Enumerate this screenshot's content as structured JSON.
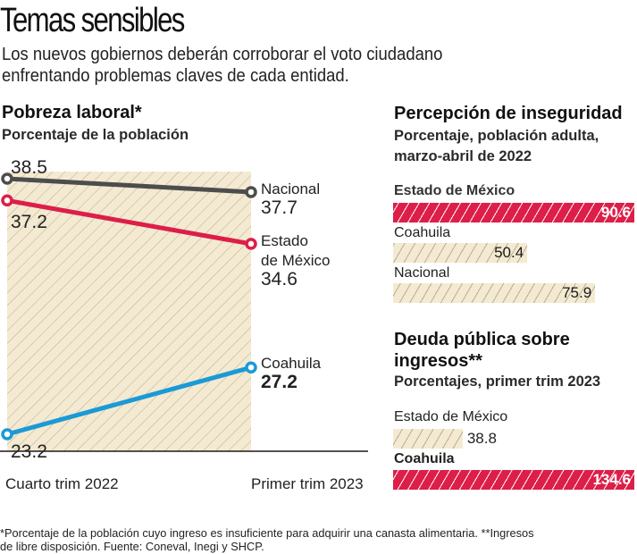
{
  "header": {
    "title": "Temas sensibles",
    "subtitle_line1": "Los nuevos gobiernos deberán corroborar el voto ciudadano",
    "subtitle_line2": "enfrentando problemas claves de cada entidad."
  },
  "colors": {
    "nacional": "#4d4d4d",
    "estado_de_mexico": "#dd1e48",
    "coahuila": "#1a9ad6",
    "hatch_bg": "#f3ead1",
    "hatch_line": "#b7ad93"
  },
  "chart_data": [
    {
      "type": "line",
      "title": "Pobreza laboral*",
      "subtitle": "Porcentaje de la población",
      "categories": [
        "Cuarto trim 2022",
        "Primer trim 2023"
      ],
      "series": [
        {
          "name": "Nacional",
          "values": [
            38.5,
            37.7
          ],
          "labels": [
            "38.5",
            "37.7"
          ]
        },
        {
          "name": "Estado de México",
          "values": [
            37.2,
            34.6
          ],
          "labels": [
            "37.2",
            "34.6"
          ]
        },
        {
          "name": "Coahuila",
          "values": [
            23.2,
            27.2
          ],
          "labels": [
            "23.2",
            "27.2"
          ]
        }
      ],
      "end_labels": {
        "nacional": "Nacional",
        "edomex_1": "Estado",
        "edomex_2": "de México",
        "coahuila": "Coahuila"
      },
      "ylim": [
        20,
        40
      ]
    },
    {
      "type": "bar",
      "title": "Percepción de inseguridad",
      "subtitle_line1": "Porcentaje, población adulta,",
      "subtitle_line2": "marzo-abril de 2022",
      "categories": [
        "Estado de México",
        "Coahuila",
        "Nacional"
      ],
      "values": [
        90.6,
        50.4,
        75.9
      ],
      "labels": [
        "90.6",
        "50.4",
        "75.9"
      ],
      "highlight": [
        true,
        false,
        false
      ],
      "xlim": [
        0,
        90.6
      ]
    },
    {
      "type": "bar",
      "title_line1": "Deuda pública sobre",
      "title_line2": "ingresos**",
      "subtitle": "Porcentajes, primer trim 2023",
      "categories": [
        "Estado de México",
        "Coahuila"
      ],
      "values": [
        38.8,
        134.6
      ],
      "labels": [
        "38.8",
        "134.6"
      ],
      "highlight": [
        false,
        true
      ],
      "xlim": [
        0,
        134.6
      ]
    }
  ],
  "footnote_line1": "*Porcentaje de la población cuyo ingreso es insuficiente para adquirir una canasta alimentaria. **Ingresos",
  "footnote_line2": "de libre disposición. Fuente: Coneval, Inegi y SHCP."
}
